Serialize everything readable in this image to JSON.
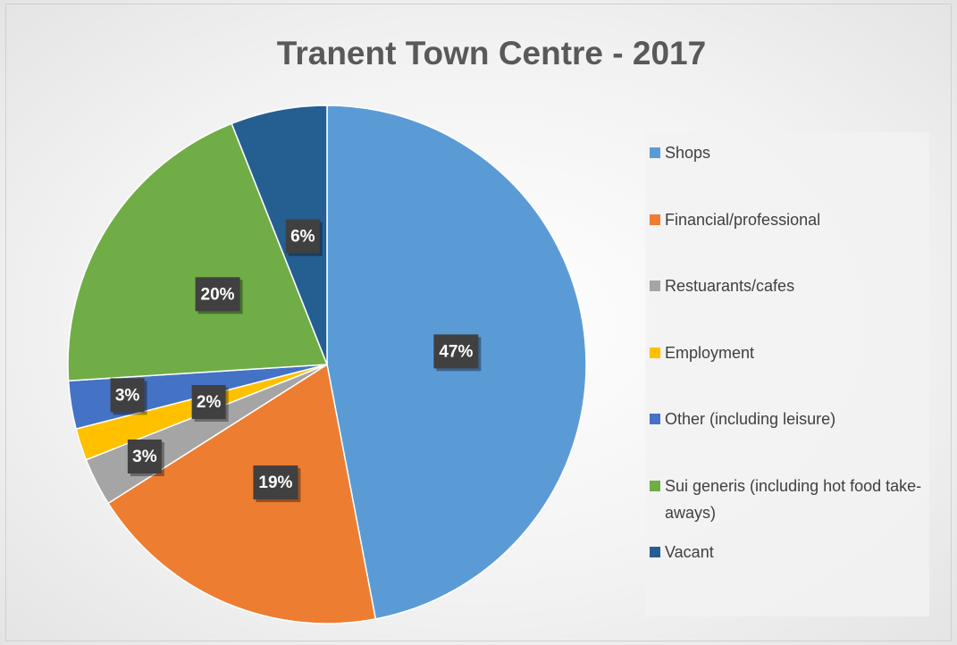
{
  "chart_data": {
    "type": "pie",
    "title": "Tranent Town Centre - 2017",
    "categories": [
      "Shops",
      "Financial/professional",
      "Restuarants/cafes",
      "Employment",
      "Other (including leisure)",
      "Sui generis (including hot food take-aways)",
      "Vacant"
    ],
    "values": [
      47,
      19,
      3,
      2,
      3,
      20,
      6
    ],
    "value_labels": [
      "47%",
      "19%",
      "3%",
      "2%",
      "3%",
      "20%",
      "6%"
    ],
    "colors": [
      "#5b9bd5",
      "#ed7d31",
      "#a5a5a5",
      "#ffc000",
      "#4472c4",
      "#70ad47",
      "#255e91"
    ],
    "legend": "right"
  }
}
